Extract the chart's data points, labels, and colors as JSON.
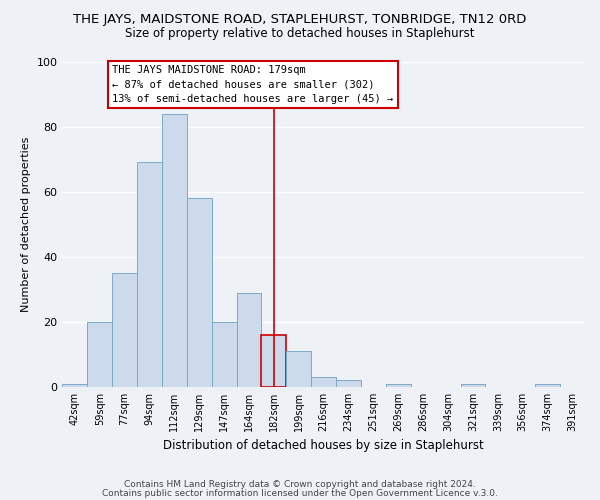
{
  "title": "THE JAYS, MAIDSTONE ROAD, STAPLEHURST, TONBRIDGE, TN12 0RD",
  "subtitle": "Size of property relative to detached houses in Staplehurst",
  "xlabel": "Distribution of detached houses by size in Staplehurst",
  "ylabel": "Number of detached properties",
  "bin_labels": [
    "42sqm",
    "59sqm",
    "77sqm",
    "94sqm",
    "112sqm",
    "129sqm",
    "147sqm",
    "164sqm",
    "182sqm",
    "199sqm",
    "216sqm",
    "234sqm",
    "251sqm",
    "269sqm",
    "286sqm",
    "304sqm",
    "321sqm",
    "339sqm",
    "356sqm",
    "374sqm",
    "391sqm"
  ],
  "bar_heights": [
    1,
    20,
    35,
    69,
    84,
    58,
    20,
    29,
    16,
    11,
    3,
    2,
    0,
    1,
    0,
    0,
    1,
    0,
    0,
    1,
    0
  ],
  "bar_color": "#cddaeb",
  "bar_edge_color": "#7aaac8",
  "highlight_bar_index": 8,
  "highlight_bar_edge_color": "#cc0000",
  "vline_x": 8,
  "vline_color": "#cc0000",
  "ylim": [
    0,
    100
  ],
  "annotation_title": "THE JAYS MAIDSTONE ROAD: 179sqm",
  "annotation_line1": "← 87% of detached houses are smaller (302)",
  "annotation_line2": "13% of semi-detached houses are larger (45) →",
  "annotation_box_color": "#ffffff",
  "annotation_box_edge": "#cc0000",
  "footer_line1": "Contains HM Land Registry data © Crown copyright and database right 2024.",
  "footer_line2": "Contains public sector information licensed under the Open Government Licence v.3.0.",
  "bg_color": "#eef2f7",
  "grid_color": "#ffffff",
  "title_fontsize": 9.5,
  "subtitle_fontsize": 8.5,
  "ylabel_fontsize": 8,
  "xlabel_fontsize": 8.5,
  "tick_fontsize": 7,
  "annotation_fontsize": 7.5,
  "footer_fontsize": 6.5
}
